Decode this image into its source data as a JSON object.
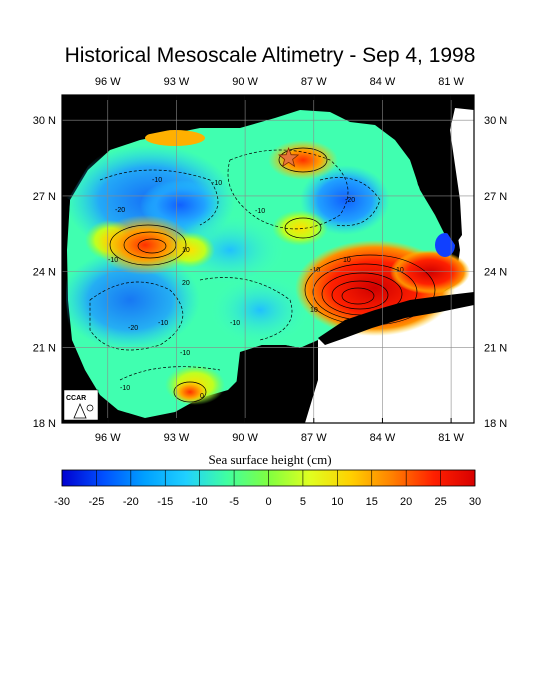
{
  "title": "Historical Mesoscale Altimetry - Sep 4, 1998",
  "axes": {
    "lon_labels": [
      "96 W",
      "93 W",
      "90 W",
      "87 W",
      "84 W",
      "81 W"
    ],
    "lat_labels": [
      "30 N",
      "27 N",
      "24 N",
      "21 N",
      "18 N"
    ],
    "lon_range": [
      -98.0,
      -80.0
    ],
    "lat_range": [
      18.0,
      31.0
    ],
    "grid": true
  },
  "logo_text": "CCAR",
  "marker": {
    "type": "star",
    "lon": -88.1,
    "lat": 28.5,
    "color": "#e8743a"
  },
  "features": [
    {
      "kind": "warm-eddy",
      "lon": -94.6,
      "lat": 25.0,
      "value": 20
    },
    {
      "kind": "loop-current",
      "lon": -85.0,
      "lat": 23.2,
      "value": 30
    },
    {
      "kind": "warm-eddy",
      "lon": -87.9,
      "lat": 28.4,
      "value": 12
    },
    {
      "kind": "warm-eddy",
      "lon": -87.0,
      "lat": 26.0,
      "value": 6
    },
    {
      "kind": "warm-eddy",
      "lon": -93.8,
      "lat": 19.8,
      "value": 14
    },
    {
      "kind": "cold-eddy",
      "lon": -92.8,
      "lat": 26.9,
      "value": -18
    },
    {
      "kind": "cold-eddy",
      "lon": -95.5,
      "lat": 23.0,
      "value": -18
    },
    {
      "kind": "cold-eddy",
      "lon": -84.5,
      "lat": 26.8,
      "value": -18
    }
  ],
  "contour_labels": [
    "-10",
    "-20",
    "-10",
    "-10",
    "10",
    "-10",
    "-20",
    "20",
    "-10",
    "-10",
    "-20",
    "-10",
    "10",
    "-10",
    "-10",
    "0",
    "10",
    "10"
  ],
  "colorbar": {
    "title": "Sea surface height (cm)",
    "ticks": [
      "-30",
      "-25",
      "-20",
      "-15",
      "-10",
      "-5",
      "0",
      "5",
      "10",
      "15",
      "20",
      "25",
      "30"
    ],
    "min": -30,
    "max": 30,
    "colors": [
      "#0000d0",
      "#0050ff",
      "#00a0ff",
      "#20d0ff",
      "#40ffa0",
      "#80ff40",
      "#e0ff20",
      "#ffd000",
      "#ff8000",
      "#ff2000",
      "#d80000"
    ]
  },
  "colors": {
    "land": "#000000",
    "frame": "#000000",
    "star": "#e8743a"
  }
}
